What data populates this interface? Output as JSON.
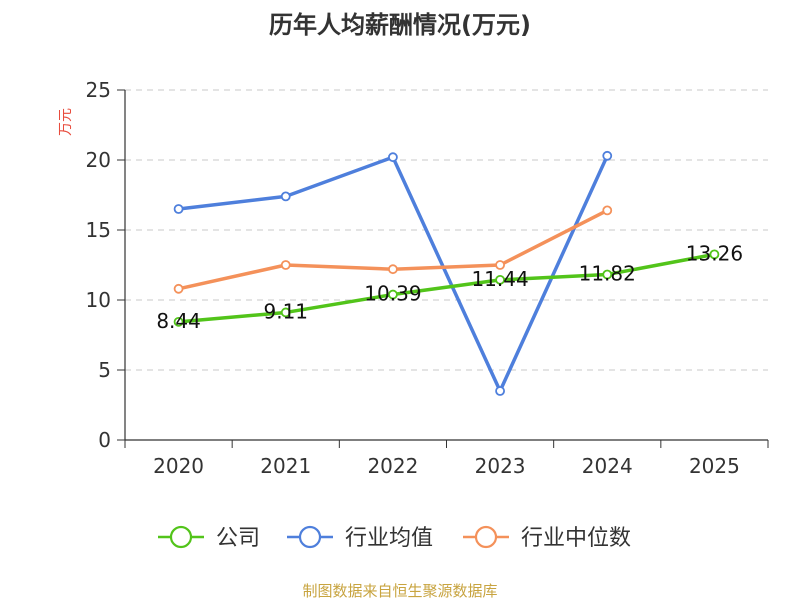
{
  "chart_data": {
    "type": "line",
    "title": "历年人均薪酬情况(万元)",
    "ylabel": "万元",
    "xlabel": "",
    "categories": [
      "2020",
      "2021",
      "2022",
      "2023",
      "2024",
      "2025"
    ],
    "ylim": [
      0,
      25
    ],
    "yticks": [
      0,
      5,
      10,
      15,
      20,
      25
    ],
    "grid": true,
    "legend_position": "bottom",
    "series": [
      {
        "name": "公司",
        "color": "#52c41a",
        "values": [
          8.44,
          9.11,
          10.39,
          11.44,
          11.82,
          13.26
        ],
        "labels": [
          "8.44",
          "9.11",
          "10.39",
          "11.44",
          "11.82",
          "13.26"
        ]
      },
      {
        "name": "行业均值",
        "color": "#4e7fdc",
        "values": [
          16.5,
          17.4,
          20.2,
          3.5,
          20.3,
          null
        ],
        "labels": []
      },
      {
        "name": "行业中位数",
        "color": "#f4915a",
        "values": [
          10.8,
          12.5,
          12.2,
          12.5,
          16.4,
          null
        ],
        "labels": []
      }
    ],
    "source": "制图数据来自恒生聚源数据库"
  }
}
